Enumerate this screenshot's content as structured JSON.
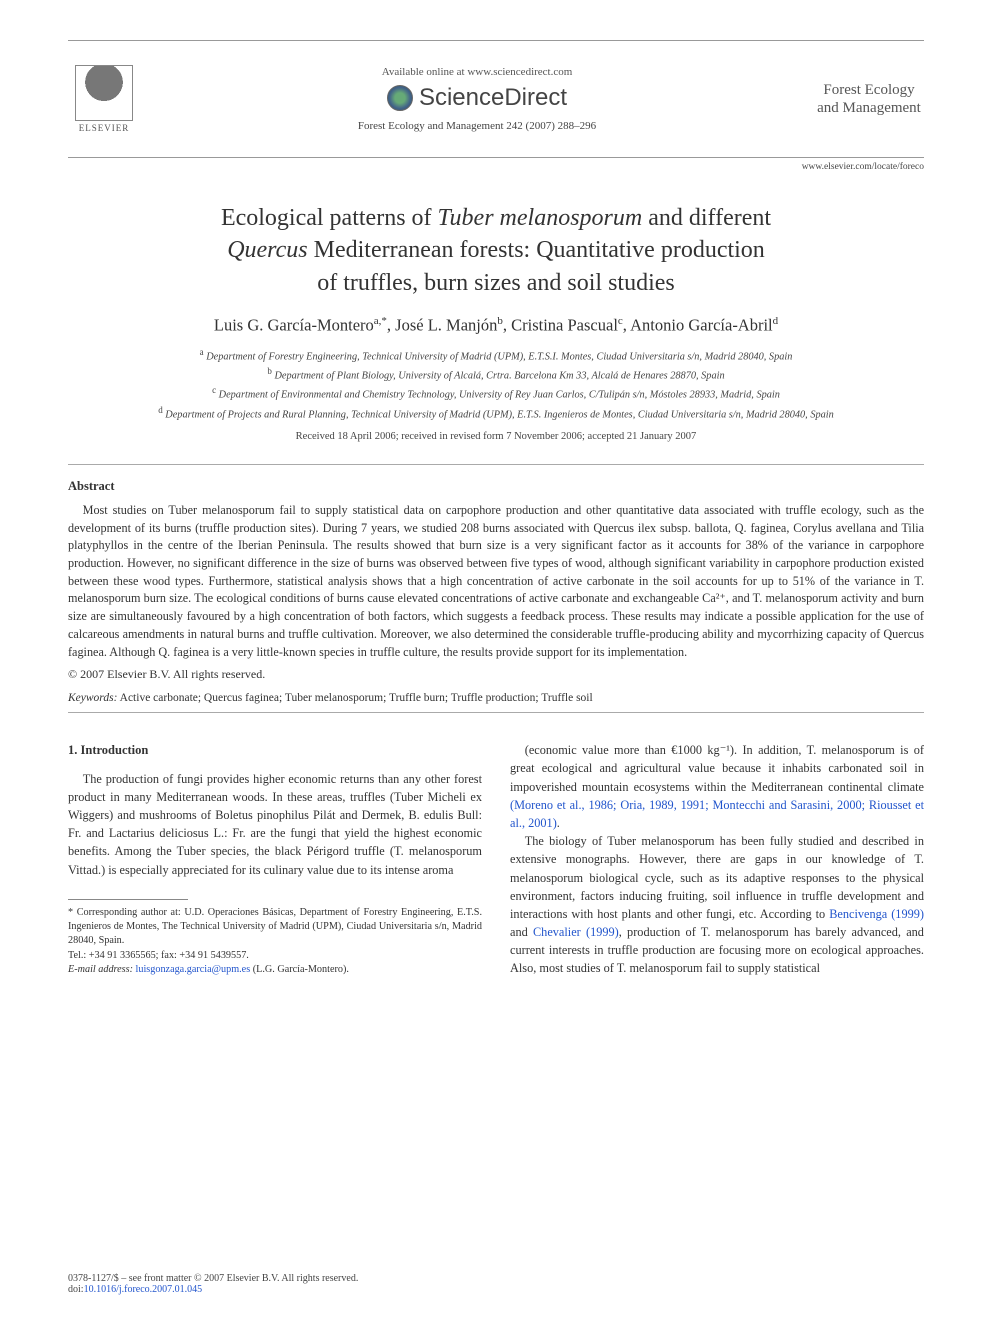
{
  "header": {
    "publisher": "ELSEVIER",
    "available_line": "Available online at www.sciencedirect.com",
    "sciencedirect": "ScienceDirect",
    "journal_ref": "Forest Ecology and Management 242 (2007) 288–296",
    "journal_name": "Forest Ecology and Management",
    "journal_url": "www.elsevier.com/locate/foreco"
  },
  "title_parts": {
    "l1a": "Ecological patterns of ",
    "l1b": "Tuber melanosporum",
    "l1c": " and different",
    "l2a": "Quercus",
    "l2b": " Mediterranean forests: Quantitative production",
    "l3": "of truffles, burn sizes and soil studies"
  },
  "authors": {
    "a1_name": "Luis G. García-Montero",
    "a1_sup": "a,*",
    "a2_name": "José L. Manjón",
    "a2_sup": "b",
    "a3_name": "Cristina Pascual",
    "a3_sup": "c",
    "a4_name": "Antonio García-Abril",
    "a4_sup": "d"
  },
  "affiliations": {
    "a": "Department of Forestry Engineering, Technical University of Madrid (UPM), E.T.S.I. Montes, Ciudad Universitaria s/n, Madrid 28040, Spain",
    "b": "Department of Plant Biology, University of Alcalá, Crtra. Barcelona Km 33, Alcalá de Henares 28870, Spain",
    "c": "Department of Environmental and Chemistry Technology, University of Rey Juan Carlos, C/Tulipán s/n, Móstoles 28933, Madrid, Spain",
    "d": "Department of Projects and Rural Planning, Technical University of Madrid (UPM), E.T.S. Ingenieros de Montes, Ciudad Universitaria s/n, Madrid 28040, Spain"
  },
  "dates": "Received 18 April 2006; received in revised form 7 November 2006; accepted 21 January 2007",
  "abstract": {
    "heading": "Abstract",
    "body": "Most studies on Tuber melanosporum fail to supply statistical data on carpophore production and other quantitative data associated with truffle ecology, such as the development of its burns (truffle production sites). During 7 years, we studied 208 burns associated with Quercus ilex subsp. ballota, Q. faginea, Corylus avellana and Tilia platyphyllos in the centre of the Iberian Peninsula. The results showed that burn size is a very significant factor as it accounts for 38% of the variance in carpophore production. However, no significant difference in the size of burns was observed between five types of wood, although significant variability in carpophore production existed between these wood types. Furthermore, statistical analysis shows that a high concentration of active carbonate in the soil accounts for up to 51% of the variance in T. melanosporum burn size. The ecological conditions of burns cause elevated concentrations of active carbonate and exchangeable Ca²⁺, and T. melanosporum activity and burn size are simultaneously favoured by a high concentration of both factors, which suggests a feedback process. These results may indicate a possible application for the use of calcareous amendments in natural burns and truffle cultivation. Moreover, we also determined the considerable truffle-producing ability and mycorrhizing capacity of Quercus faginea. Although Q. faginea is a very little-known species in truffle culture, the results provide support for its implementation.",
    "copyright": "© 2007 Elsevier B.V. All rights reserved."
  },
  "keywords": {
    "label": "Keywords:",
    "text": " Active carbonate; Quercus faginea; Tuber melanosporum; Truffle burn; Truffle production; Truffle soil"
  },
  "intro": {
    "heading": "1. Introduction",
    "left_p1": "The production of fungi provides higher economic returns than any other forest product in many Mediterranean woods. In these areas, truffles (Tuber Micheli ex Wiggers) and mushrooms of Boletus pinophilus Pilát and Dermek, B. edulis Bull: Fr. and Lactarius deliciosus L.: Fr. are the fungi that yield the highest economic benefits. Among the Tuber species, the black Périgord truffle (T. melanosporum Vittad.) is especially appreciated for its culinary value due to its intense aroma",
    "right_p1a": "(economic value more than €1000 kg⁻¹). In addition, T. melanosporum is of great ecological and agricultural value because it inhabits carbonated soil in impoverished mountain ecosystems within the Mediterranean continental climate ",
    "right_p1_cite": "(Moreno et al., 1986; Oria, 1989, 1991; Montecchi and Sarasini, 2000; Riousset et al., 2001)",
    "right_p1b": ".",
    "right_p2a": "The biology of Tuber melanosporum has been fully studied and described in extensive monographs. However, there are gaps in our knowledge of T. melanosporum biological cycle, such as its adaptive responses to the physical environment, factors inducing fruiting, soil influence in truffle development and interactions with host plants and other fungi, etc. According to ",
    "right_p2_cite1": "Bencivenga (1999)",
    "right_p2b": " and ",
    "right_p2_cite2": "Chevalier (1999)",
    "right_p2c": ", production of T. melanosporum has barely advanced, and current interests in truffle production are focusing more on ecological approaches. Also, most studies of T. melanosporum fail to supply statistical"
  },
  "footnote": {
    "corr": "* Corresponding author at: U.D. Operaciones Básicas, Department of Forestry Engineering, E.T.S. Ingenieros de Montes, The Technical University of Madrid (UPM), Ciudad Universitaria s/n, Madrid 28040, Spain.",
    "tel": "Tel.: +34 91 3365565; fax: +34 91 5439557.",
    "email_label": "E-mail address:",
    "email": "luisgonzaga.garcia@upm.es",
    "email_suffix": " (L.G. García-Montero)."
  },
  "footer": {
    "front": "0378-1127/$ – see front matter © 2007 Elsevier B.V. All rights reserved.",
    "doi_label": "doi:",
    "doi": "10.1016/j.foreco.2007.01.045"
  },
  "colors": {
    "text": "#333333",
    "link": "#2255cc",
    "rule": "#999999",
    "bg": "#ffffff"
  }
}
